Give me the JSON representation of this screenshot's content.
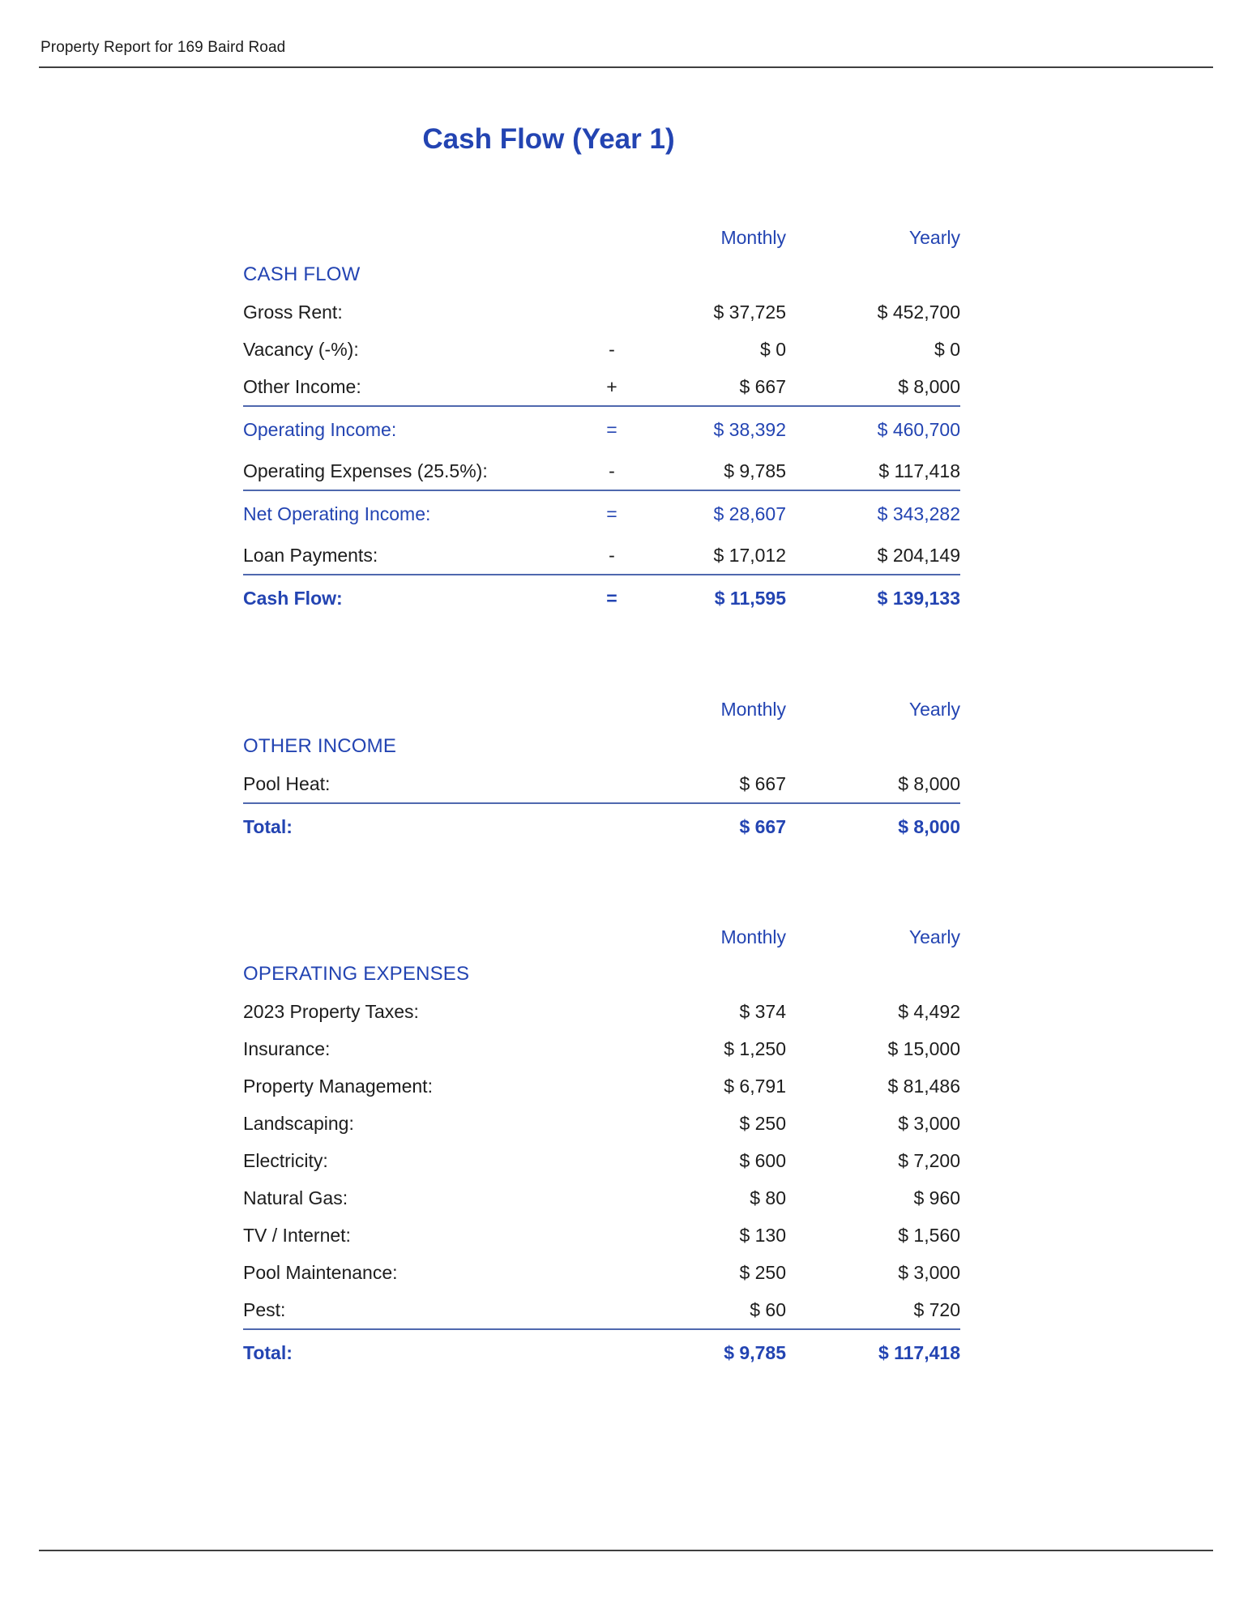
{
  "header": {
    "text": "Property Report for 169 Baird Road"
  },
  "title": "Cash Flow (Year 1)",
  "colors": {
    "accent_blue": "#2344b2",
    "separator_blue": "#4f68ae",
    "text_black": "#1d1d1d",
    "rule_gray": "#3f3f3f",
    "background": "#ffffff"
  },
  "column_headers": {
    "monthly": "Monthly",
    "yearly": "Yearly"
  },
  "tables": [
    {
      "section": "CASH FLOW",
      "rows": [
        {
          "label": "Gross Rent:",
          "op": "",
          "monthly": "$ 37,725",
          "yearly": "$ 452,700",
          "style": "normal"
        },
        {
          "label": "Vacancy (-%):",
          "op": "-",
          "monthly": "$ 0",
          "yearly": "$ 0",
          "style": "normal"
        },
        {
          "label": "Other Income:",
          "op": "+",
          "monthly": "$ 667",
          "yearly": "$ 8,000",
          "style": "normal"
        },
        {
          "label": "Operating Income:",
          "op": "=",
          "monthly": "$ 38,392",
          "yearly": "$ 460,700",
          "style": "result"
        },
        {
          "label": "Operating Expenses (25.5%):",
          "op": "-",
          "monthly": "$ 9,785",
          "yearly": "$ 117,418",
          "style": "normal"
        },
        {
          "label": "Net Operating Income:",
          "op": "=",
          "monthly": "$ 28,607",
          "yearly": "$ 343,282",
          "style": "result"
        },
        {
          "label": "Loan Payments:",
          "op": "-",
          "monthly": "$ 17,012",
          "yearly": "$ 204,149",
          "style": "normal"
        },
        {
          "label": "Cash Flow:",
          "op": "=",
          "monthly": "$ 11,595",
          "yearly": "$ 139,133",
          "style": "total"
        }
      ]
    },
    {
      "section": "OTHER INCOME",
      "rows": [
        {
          "label": "Pool Heat:",
          "op": "",
          "monthly": "$ 667",
          "yearly": "$ 8,000",
          "style": "normal"
        },
        {
          "label": "Total:",
          "op": "",
          "monthly": "$ 667",
          "yearly": "$ 8,000",
          "style": "total"
        }
      ]
    },
    {
      "section": "OPERATING EXPENSES",
      "rows": [
        {
          "label": "2023 Property Taxes:",
          "op": "",
          "monthly": "$ 374",
          "yearly": "$ 4,492",
          "style": "normal"
        },
        {
          "label": "Insurance:",
          "op": "",
          "monthly": "$ 1,250",
          "yearly": "$ 15,000",
          "style": "normal"
        },
        {
          "label": "Property Management:",
          "op": "",
          "monthly": "$ 6,791",
          "yearly": "$ 81,486",
          "style": "normal"
        },
        {
          "label": "Landscaping:",
          "op": "",
          "monthly": "$ 250",
          "yearly": "$ 3,000",
          "style": "normal"
        },
        {
          "label": "Electricity:",
          "op": "",
          "monthly": "$ 600",
          "yearly": "$ 7,200",
          "style": "normal"
        },
        {
          "label": "Natural Gas:",
          "op": "",
          "monthly": "$ 80",
          "yearly": "$ 960",
          "style": "normal"
        },
        {
          "label": "TV / Internet:",
          "op": "",
          "monthly": "$ 130",
          "yearly": "$ 1,560",
          "style": "normal"
        },
        {
          "label": "Pool Maintenance:",
          "op": "",
          "monthly": "$ 250",
          "yearly": "$ 3,000",
          "style": "normal"
        },
        {
          "label": "Pest:",
          "op": "",
          "monthly": "$ 60",
          "yearly": "$ 720",
          "style": "normal"
        },
        {
          "label": "Total:",
          "op": "",
          "monthly": "$ 9,785",
          "yearly": "$ 117,418",
          "style": "total"
        }
      ]
    }
  ]
}
